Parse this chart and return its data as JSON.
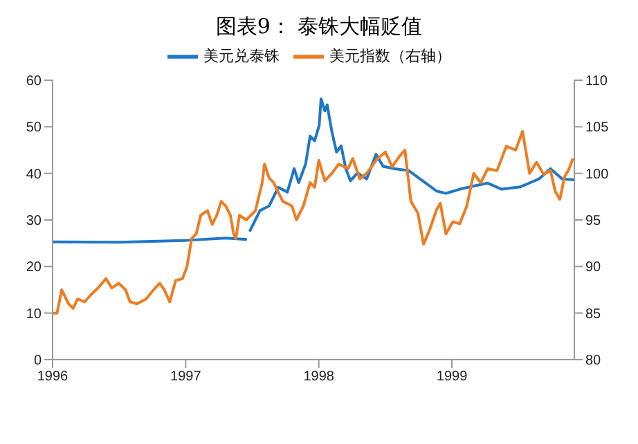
{
  "chart_data": {
    "type": "line",
    "title": "图表9：  泰铢大幅贬值",
    "xlim": [
      1996,
      1999.92
    ],
    "xticks": [
      1996,
      1997,
      1998,
      1999
    ],
    "ylim": [
      0,
      60
    ],
    "yticks": [
      0,
      10,
      20,
      30,
      40,
      50,
      60
    ],
    "y2lim": [
      80,
      110
    ],
    "y2ticks": [
      80,
      85,
      90,
      95,
      100,
      105,
      110
    ],
    "legend": "top",
    "series": [
      {
        "name": "美元兑泰铢",
        "color": "#1f77c8",
        "x": [
          1996.0,
          1996.5,
          1997.0,
          1997.3,
          1997.46,
          1997.47,
          1997.48,
          1997.558,
          1997.627,
          1997.695,
          1997.764,
          1997.815,
          1997.849,
          1997.901,
          1997.935,
          1997.969,
          1998.003,
          1998.017,
          1998.045,
          1998.063,
          1998.098,
          1998.133,
          1998.168,
          1998.203,
          1998.238,
          1998.29,
          1998.36,
          1998.43,
          1998.483,
          1998.57,
          1998.675,
          1998.78,
          1998.885,
          1998.955,
          1999.059,
          1999.199,
          1999.269,
          1999.374,
          1999.514,
          1999.654,
          1999.741,
          1999.829,
          1999.916
        ],
        "values": [
          25.3,
          25.2,
          25.6,
          26.1,
          25.8,
          null,
          27.5,
          32,
          33,
          37,
          36,
          41,
          38,
          42,
          48,
          47,
          50.3,
          56,
          53.4,
          54.7,
          49,
          44.6,
          45.9,
          41,
          38.4,
          40.1,
          38.8,
          44.1,
          41.5,
          41,
          40.6,
          38.4,
          36.2,
          35.7,
          36.6,
          37.5,
          37.9,
          36.6,
          37.1,
          38.8,
          41,
          38.8,
          38.6
        ]
      },
      {
        "name": "美元指数（右轴）",
        "color": "#ed7d22",
        "axis": "y2",
        "x": [
          1996.0,
          1996.034,
          1996.068,
          1996.12,
          1996.154,
          1996.188,
          1996.24,
          1996.291,
          1996.342,
          1996.401,
          1996.445,
          1996.497,
          1996.548,
          1996.582,
          1996.634,
          1996.702,
          1996.771,
          1996.805,
          1996.839,
          1996.88,
          1996.925,
          1996.976,
          1997.01,
          1997.045,
          1997.079,
          1997.113,
          1997.164,
          1997.199,
          1997.233,
          1997.267,
          1997.301,
          1997.336,
          1997.36,
          1997.377,
          1997.404,
          1997.455,
          1997.524,
          1997.575,
          1997.592,
          1997.627,
          1997.661,
          1997.729,
          1997.798,
          1997.832,
          1997.884,
          1997.935,
          1997.969,
          1998.0,
          1998.045,
          1998.098,
          1998.15,
          1998.22,
          1998.255,
          1998.308,
          1998.36,
          1998.43,
          1998.5,
          1998.552,
          1998.605,
          1998.647,
          1998.692,
          1998.745,
          1998.787,
          1998.832,
          1998.885,
          1998.913,
          1998.955,
          1999.007,
          1999.059,
          1999.112,
          1999.164,
          1999.217,
          1999.269,
          1999.339,
          1999.409,
          1999.479,
          1999.531,
          1999.584,
          1999.636,
          1999.689,
          1999.741,
          1999.776,
          1999.811,
          1999.846,
          1999.881,
          1999.909
        ],
        "values": [
          85,
          85,
          87.5,
          86,
          85.5,
          86.5,
          86.2,
          87,
          87.7,
          88.7,
          87.7,
          88.2,
          87.5,
          86.2,
          86,
          86.5,
          87.7,
          88.2,
          87.5,
          86.2,
          88.5,
          88.7,
          90,
          93,
          93.5,
          95.5,
          96,
          94.5,
          95.5,
          97,
          96.5,
          95.5,
          93.5,
          93,
          95.5,
          95,
          96,
          99,
          101,
          99.5,
          99,
          97,
          96.5,
          95,
          96.5,
          99,
          98.5,
          101.4,
          99.2,
          100,
          101,
          100.5,
          101.6,
          99.4,
          100,
          101.4,
          102.3,
          100.7,
          101.8,
          102.5,
          97,
          95.7,
          92.4,
          93.9,
          96.1,
          96.8,
          93.5,
          94.8,
          94.6,
          96.5,
          100,
          99,
          100.5,
          100.3,
          102.9,
          102.5,
          104.5,
          100,
          101.2,
          99.9,
          100.3,
          98.1,
          97.2,
          99.6,
          100.5,
          101.6
        ]
      }
    ]
  }
}
